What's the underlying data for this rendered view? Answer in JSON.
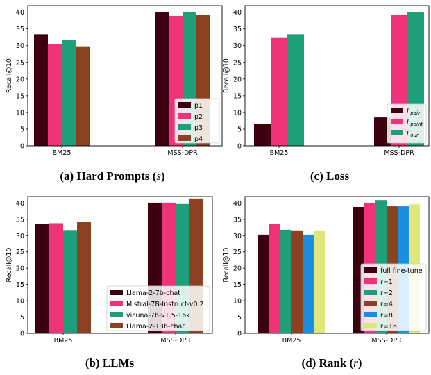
{
  "colors": {
    "dark_maroon": "#3c000f",
    "pink": "#f03278",
    "green": "#1f9e7a",
    "brown": "#8b4220",
    "blue": "#1a8fe0",
    "yellow_green": "#dde77a"
  },
  "chart_data": [
    {
      "id": "a",
      "type": "bar",
      "caption": "(a) Hard Prompts (s)",
      "caption_parts": {
        "pre": "(a) Hard Prompts (",
        "var": "s",
        "post": ")"
      },
      "ylabel": "Recall@10",
      "ylim": [
        0,
        42
      ],
      "yticks": [
        0,
        5,
        10,
        15,
        20,
        25,
        30,
        35,
        40
      ],
      "categories": [
        "BM25",
        "MSS-DPR"
      ],
      "legend_position": "lower-right",
      "series": [
        {
          "name": "p1",
          "color": "#3c000f",
          "values": [
            33.4,
            40.1
          ]
        },
        {
          "name": "p2",
          "color": "#f03278",
          "values": [
            30.4,
            38.9
          ]
        },
        {
          "name": "p3",
          "color": "#1f9e7a",
          "values": [
            31.8,
            40.1
          ]
        },
        {
          "name": "p4",
          "color": "#8b4220",
          "values": [
            29.8,
            39.1
          ]
        }
      ]
    },
    {
      "id": "c",
      "type": "bar",
      "caption": "(c) Loss",
      "ylabel": "Recall@10",
      "ylim": [
        0,
        42
      ],
      "yticks": [
        0,
        5,
        10,
        15,
        20,
        25,
        30,
        35,
        40
      ],
      "categories": [
        "BM25",
        "MSS-DPR"
      ],
      "legend_position": "lower-right",
      "series": [
        {
          "name": "L_pair",
          "label_main": "L",
          "label_sub": "pair",
          "color": "#3c000f",
          "values": [
            6.6,
            8.5
          ]
        },
        {
          "name": "L_point",
          "label_main": "L",
          "label_sub": "point",
          "color": "#f03278",
          "values": [
            32.5,
            39.3
          ]
        },
        {
          "name": "L_our",
          "label_main": "L",
          "label_sub": "our",
          "color": "#1f9e7a",
          "values": [
            33.4,
            40.1
          ]
        }
      ]
    },
    {
      "id": "b",
      "type": "bar",
      "caption": "(b) LLMs",
      "ylabel": "Recall@10",
      "ylim": [
        0,
        42
      ],
      "yticks": [
        0,
        5,
        10,
        15,
        20,
        25,
        30,
        35,
        40
      ],
      "categories": [
        "BM25",
        "MSS-DPR"
      ],
      "legend_position": "lower-right",
      "series": [
        {
          "name": "Llama-2-7b-chat",
          "color": "#3c000f",
          "values": [
            33.5,
            40.1
          ]
        },
        {
          "name": "Mistral-7B-Instruct-v0.2",
          "color": "#f03278",
          "values": [
            33.8,
            40.1
          ]
        },
        {
          "name": "vicuna-7b-v1.5-16k",
          "color": "#1f9e7a",
          "values": [
            31.7,
            39.7
          ]
        },
        {
          "name": "Llama-2-13b-chat",
          "color": "#8b4220",
          "values": [
            34.2,
            41.4
          ]
        }
      ]
    },
    {
      "id": "d",
      "type": "bar",
      "caption": "(d) Rank (r)",
      "caption_parts": {
        "pre": "(d) Rank (",
        "var": "r",
        "post": ")"
      },
      "ylabel": "Recall@10",
      "ylim": [
        0,
        42
      ],
      "yticks": [
        0,
        5,
        10,
        15,
        20,
        25,
        30,
        35,
        40
      ],
      "categories": [
        "BM25",
        "MSS-DPR"
      ],
      "legend_position": "lower-right",
      "series": [
        {
          "name": "full fine-tune",
          "color": "#3c000f",
          "values": [
            30.3,
            38.8
          ]
        },
        {
          "name": "r=1",
          "color": "#f03278",
          "values": [
            33.6,
            40.0
          ]
        },
        {
          "name": "r=2",
          "color": "#1f9e7a",
          "values": [
            31.8,
            40.9
          ]
        },
        {
          "name": "r=4",
          "color": "#8b4220",
          "values": [
            31.6,
            39.0
          ]
        },
        {
          "name": "r=8",
          "color": "#1a8fe0",
          "values": [
            30.3,
            39.0
          ]
        },
        {
          "name": "r=16",
          "color": "#dde77a",
          "values": [
            31.6,
            39.6
          ]
        }
      ]
    }
  ]
}
